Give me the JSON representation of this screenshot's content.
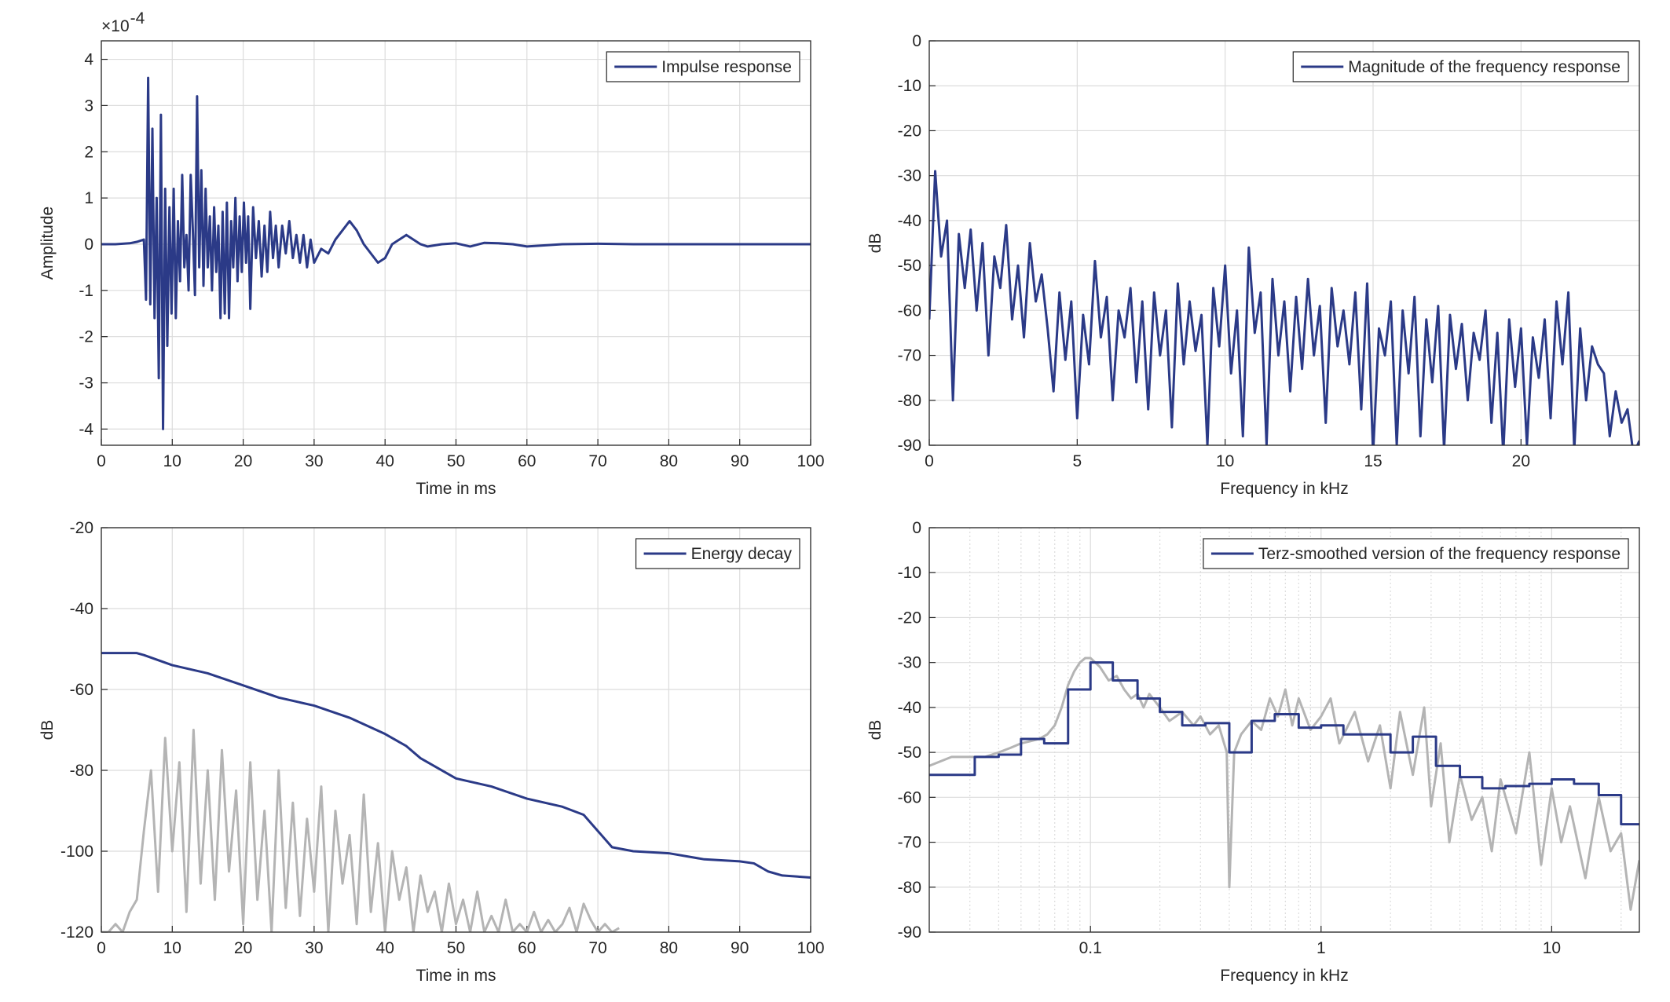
{
  "chart_data": [
    {
      "type": "line",
      "xlabel": "Time in ms",
      "ylabel": "Amplitude",
      "y_multiplier": {
        "base": "×10",
        "exponent": "-4"
      },
      "xlim": [
        0,
        100
      ],
      "ylim": [
        -4.35,
        4.4
      ],
      "xticks": [
        0,
        10,
        20,
        30,
        40,
        50,
        60,
        70,
        80,
        90,
        100
      ],
      "yticks": [
        -4,
        -3,
        -2,
        -1,
        0,
        1,
        2,
        3,
        4
      ],
      "grid": true,
      "legend": "top-right",
      "series": [
        {
          "name": "Impulse response",
          "color": "#2b3a87",
          "x": [
            0,
            2,
            4,
            5,
            6,
            6.3,
            6.6,
            6.9,
            7.2,
            7.5,
            7.8,
            8.1,
            8.4,
            8.7,
            9,
            9.3,
            9.6,
            9.9,
            10.2,
            10.5,
            10.8,
            11.1,
            11.4,
            11.7,
            12,
            12.3,
            12.6,
            12.9,
            13.2,
            13.5,
            13.8,
            14.1,
            14.4,
            14.7,
            15,
            15.3,
            15.6,
            15.9,
            16.2,
            16.5,
            16.8,
            17.1,
            17.4,
            17.7,
            18,
            18.3,
            18.6,
            18.9,
            19.2,
            19.5,
            19.8,
            20.1,
            20.4,
            20.7,
            21,
            21.4,
            21.8,
            22.2,
            22.6,
            23,
            23.4,
            23.8,
            24.2,
            24.6,
            25,
            25.5,
            26,
            26.5,
            27,
            27.5,
            28,
            28.5,
            29,
            29.5,
            30,
            31,
            32,
            33,
            34,
            35,
            36,
            37,
            38,
            39,
            40,
            41,
            42,
            43,
            44,
            45,
            46,
            48,
            50,
            52,
            54,
            56,
            58,
            60,
            65,
            70,
            75,
            80,
            90,
            100
          ],
          "values": [
            0,
            0,
            0.02,
            0.05,
            0.1,
            -1.2,
            3.6,
            -1.3,
            2.5,
            -1.6,
            1.0,
            -2.9,
            2.8,
            -4.0,
            1.2,
            -2.2,
            0.8,
            -1.5,
            1.2,
            -1.6,
            0.5,
            -0.8,
            1.5,
            -0.5,
            0.2,
            -1.0,
            1.5,
            0.3,
            -1.1,
            3.2,
            -0.5,
            1.6,
            -0.9,
            1.2,
            -0.5,
            0.6,
            -1.0,
            0.8,
            -0.6,
            0.4,
            -1.6,
            0.7,
            -1.5,
            0.9,
            -1.6,
            0.5,
            -0.5,
            1.0,
            -0.8,
            0.6,
            -0.6,
            0.9,
            -0.4,
            0.6,
            -1.4,
            0.8,
            -0.3,
            0.5,
            -0.7,
            0.4,
            -0.6,
            0.7,
            -0.3,
            0.4,
            -0.5,
            0.4,
            -0.2,
            0.5,
            -0.3,
            0.2,
            -0.4,
            0.2,
            -0.5,
            0.1,
            -0.4,
            -0.1,
            -0.2,
            0.1,
            0.3,
            0.5,
            0.3,
            0,
            -0.2,
            -0.4,
            -0.3,
            0,
            0.1,
            0.2,
            0.1,
            0,
            -0.05,
            0,
            0.02,
            -0.05,
            0.03,
            0.02,
            0,
            -0.05,
            0,
            0.01,
            0,
            0,
            0,
            0
          ]
        }
      ]
    },
    {
      "type": "line",
      "xlabel": "Frequency in kHz",
      "ylabel": "dB",
      "xlim": [
        0,
        24
      ],
      "ylim": [
        -90,
        0
      ],
      "xticks": [
        0,
        5,
        10,
        15,
        20
      ],
      "yticks": [
        -90,
        -80,
        -70,
        -60,
        -50,
        -40,
        -30,
        -20,
        -10,
        0
      ],
      "grid": true,
      "legend": "top-right",
      "series": [
        {
          "name": "Magnitude of the frequency response",
          "color": "#2b3a87",
          "x": [
            0,
            0.2,
            0.4,
            0.6,
            0.8,
            1,
            1.2,
            1.4,
            1.6,
            1.8,
            2,
            2.2,
            2.4,
            2.6,
            2.8,
            3,
            3.2,
            3.4,
            3.6,
            3.8,
            4,
            4.2,
            4.4,
            4.6,
            4.8,
            5,
            5.2,
            5.4,
            5.6,
            5.8,
            6,
            6.2,
            6.4,
            6.6,
            6.8,
            7,
            7.2,
            7.4,
            7.6,
            7.8,
            8,
            8.2,
            8.4,
            8.6,
            8.8,
            9,
            9.2,
            9.4,
            9.6,
            9.8,
            10,
            10.2,
            10.4,
            10.6,
            10.8,
            11,
            11.2,
            11.4,
            11.6,
            11.8,
            12,
            12.2,
            12.4,
            12.6,
            12.8,
            13,
            13.2,
            13.4,
            13.6,
            13.8,
            14,
            14.2,
            14.4,
            14.6,
            14.8,
            15,
            15.2,
            15.4,
            15.6,
            15.8,
            16,
            16.2,
            16.4,
            16.6,
            16.8,
            17,
            17.2,
            17.4,
            17.6,
            17.8,
            18,
            18.2,
            18.4,
            18.6,
            18.8,
            19,
            19.2,
            19.4,
            19.6,
            19.8,
            20,
            20.2,
            20.4,
            20.6,
            20.8,
            21,
            21.2,
            21.4,
            21.6,
            21.8,
            22,
            22.2,
            22.4,
            22.6,
            22.8,
            23,
            23.2,
            23.4,
            23.6,
            23.8,
            24
          ],
          "values": [
            -62,
            -29,
            -48,
            -40,
            -80,
            -43,
            -55,
            -42,
            -60,
            -45,
            -70,
            -48,
            -55,
            -41,
            -62,
            -50,
            -66,
            -45,
            -58,
            -52,
            -64,
            -78,
            -56,
            -71,
            -58,
            -84,
            -61,
            -72,
            -49,
            -66,
            -57,
            -80,
            -60,
            -66,
            -55,
            -76,
            -58,
            -82,
            -56,
            -70,
            -60,
            -86,
            -54,
            -72,
            -58,
            -69,
            -61,
            -90,
            -55,
            -68,
            -50,
            -74,
            -60,
            -88,
            -46,
            -65,
            -56,
            -90,
            -53,
            -70,
            -58,
            -78,
            -57,
            -73,
            -53,
            -70,
            -59,
            -85,
            -55,
            -68,
            -60,
            -72,
            -56,
            -82,
            -54,
            -92,
            -64,
            -70,
            -58,
            -90,
            -60,
            -74,
            -57,
            -88,
            -62,
            -76,
            -59,
            -91,
            -61,
            -73,
            -63,
            -80,
            -65,
            -71,
            -60,
            -85,
            -65,
            -92,
            -62,
            -77,
            -64,
            -90,
            -66,
            -75,
            -62,
            -84,
            -58,
            -72,
            -56,
            -91,
            -64,
            -80,
            -68,
            -72,
            -74,
            -88,
            -78,
            -85,
            -82,
            -92,
            -89
          ]
        }
      ]
    },
    {
      "type": "line",
      "xlabel": "Time in ms",
      "ylabel": "dB",
      "xlim": [
        0,
        100
      ],
      "ylim": [
        -120,
        -20
      ],
      "xticks": [
        0,
        10,
        20,
        30,
        40,
        50,
        60,
        70,
        80,
        90,
        100
      ],
      "yticks": [
        -120,
        -100,
        -80,
        -60,
        -40,
        -20
      ],
      "grid": true,
      "legend": "top-right",
      "series": [
        {
          "color": "#b4b4b4",
          "x": [
            0,
            1,
            2,
            3,
            4,
            5,
            6,
            7,
            8,
            9,
            10,
            11,
            12,
            13,
            14,
            15,
            16,
            17,
            18,
            19,
            20,
            21,
            22,
            23,
            24,
            25,
            26,
            27,
            28,
            29,
            30,
            31,
            32,
            33,
            34,
            35,
            36,
            37,
            38,
            39,
            40,
            41,
            42,
            43,
            44,
            45,
            46,
            47,
            48,
            49,
            50,
            51,
            52,
            53,
            54,
            55,
            56,
            57,
            58,
            59,
            60,
            61,
            62,
            63,
            64,
            65,
            66,
            67,
            68,
            69,
            70,
            71,
            72,
            73
          ],
          "values": [
            -120,
            -120,
            -118,
            -120,
            -115,
            -112,
            -95,
            -80,
            -110,
            -72,
            -100,
            -78,
            -115,
            -70,
            -108,
            -80,
            -112,
            -75,
            -105,
            -85,
            -118,
            -78,
            -112,
            -90,
            -120,
            -80,
            -114,
            -88,
            -116,
            -92,
            -110,
            -84,
            -120,
            -90,
            -108,
            -96,
            -118,
            -86,
            -115,
            -98,
            -120,
            -100,
            -112,
            -104,
            -120,
            -106,
            -115,
            -110,
            -120,
            -108,
            -118,
            -112,
            -120,
            -110,
            -120,
            -116,
            -120,
            -112,
            -120,
            -118,
            -120,
            -115,
            -120,
            -117,
            -120,
            -118,
            -114,
            -120,
            -113,
            -117,
            -120,
            -118,
            -120,
            -119
          ]
        },
        {
          "name": "Energy decay",
          "color": "#2b3a87",
          "x": [
            0,
            5,
            6,
            10,
            15,
            20,
            25,
            30,
            35,
            40,
            43,
            45,
            50,
            55,
            60,
            65,
            68,
            70,
            72,
            75,
            80,
            85,
            90,
            92,
            94,
            96,
            100
          ],
          "values": [
            -51,
            -51,
            -51.5,
            -54,
            -56,
            -59,
            -62,
            -64,
            -67,
            -71,
            -74,
            -77,
            -82,
            -84,
            -87,
            -89,
            -91,
            -95,
            -99,
            -100,
            -100.5,
            -102,
            -102.5,
            -103,
            -105,
            -106,
            -106.5
          ]
        }
      ]
    },
    {
      "type": "line",
      "xlabel": "Frequency in kHz",
      "ylabel": "dB",
      "xscale": "log",
      "xlim": [
        0.02,
        24
      ],
      "ylim": [
        -90,
        0
      ],
      "xticks": [
        0.1,
        1,
        10
      ],
      "xminorticks": [
        0.03,
        0.04,
        0.05,
        0.06,
        0.07,
        0.08,
        0.09,
        0.2,
        0.3,
        0.4,
        0.5,
        0.6,
        0.7,
        0.8,
        0.9,
        2,
        3,
        4,
        5,
        6,
        7,
        8,
        9,
        20
      ],
      "yticks": [
        -90,
        -80,
        -70,
        -60,
        -50,
        -40,
        -30,
        -20,
        -10,
        0
      ],
      "grid": true,
      "legend": "top-right",
      "series": [
        {
          "color": "#b4b4b4",
          "x": [
            0.02,
            0.025,
            0.03,
            0.035,
            0.04,
            0.045,
            0.05,
            0.055,
            0.06,
            0.065,
            0.07,
            0.075,
            0.08,
            0.085,
            0.09,
            0.095,
            0.1,
            0.11,
            0.12,
            0.13,
            0.14,
            0.15,
            0.16,
            0.17,
            0.18,
            0.2,
            0.22,
            0.25,
            0.28,
            0.3,
            0.33,
            0.36,
            0.39,
            0.4,
            0.42,
            0.45,
            0.5,
            0.55,
            0.6,
            0.65,
            0.7,
            0.75,
            0.8,
            0.9,
            1,
            1.1,
            1.2,
            1.4,
            1.6,
            1.8,
            2,
            2.2,
            2.5,
            2.8,
            3,
            3.3,
            3.6,
            4,
            4.5,
            5,
            5.5,
            6,
            7,
            8,
            9,
            10,
            11,
            12,
            14,
            16,
            18,
            20,
            22,
            24
          ],
          "values": [
            -53,
            -51,
            -51,
            -51,
            -50,
            -49,
            -48,
            -47.5,
            -47,
            -46,
            -44,
            -40,
            -35,
            -32,
            -30,
            -29,
            -29,
            -31,
            -34,
            -33,
            -36,
            -38,
            -37,
            -40,
            -37,
            -40,
            -43,
            -41,
            -44,
            -42,
            -46,
            -44,
            -50,
            -80,
            -50,
            -46,
            -43,
            -45,
            -38,
            -42,
            -36,
            -44,
            -38,
            -45,
            -42,
            -38,
            -48,
            -41,
            -52,
            -44,
            -58,
            -41,
            -55,
            -40,
            -62,
            -48,
            -70,
            -55,
            -65,
            -60,
            -72,
            -56,
            -68,
            -50,
            -75,
            -58,
            -70,
            -62,
            -78,
            -60,
            -72,
            -68,
            -85,
            -74
          ]
        },
        {
          "name": "Terz-smoothed version of the frequency response",
          "color": "#2b3a87",
          "x": [
            0.02,
            0.025,
            0.025,
            0.0315,
            0.0315,
            0.04,
            0.04,
            0.05,
            0.05,
            0.063,
            0.063,
            0.08,
            0.08,
            0.1,
            0.1,
            0.125,
            0.125,
            0.16,
            0.16,
            0.2,
            0.2,
            0.25,
            0.25,
            0.315,
            0.315,
            0.4,
            0.4,
            0.5,
            0.5,
            0.63,
            0.63,
            0.8,
            0.8,
            1,
            1,
            1.25,
            1.25,
            1.6,
            1.6,
            2,
            2,
            2.5,
            2.5,
            3.15,
            3.15,
            4,
            4,
            5,
            5,
            6.3,
            6.3,
            8,
            8,
            10,
            10,
            12.5,
            12.5,
            16,
            16,
            20,
            20,
            24
          ],
          "values": [
            -55,
            -55,
            -55,
            -55,
            -51,
            -51,
            -50.5,
            -50.5,
            -47,
            -47,
            -48,
            -48,
            -36,
            -36,
            -30,
            -30,
            -34,
            -34,
            -38,
            -38,
            -41,
            -41,
            -44,
            -44,
            -43.5,
            -43.5,
            -50,
            -50,
            -43,
            -43,
            -41.5,
            -41.5,
            -44.5,
            -44.5,
            -44,
            -44,
            -46,
            -46,
            -46,
            -46,
            -50,
            -50,
            -46.5,
            -46.5,
            -53,
            -53,
            -55.5,
            -55.5,
            -58,
            -58,
            -57.5,
            -57.5,
            -57,
            -57,
            -56,
            -56,
            -57,
            -57,
            -59.5,
            -59.5,
            -66,
            -66
          ]
        }
      ]
    }
  ]
}
